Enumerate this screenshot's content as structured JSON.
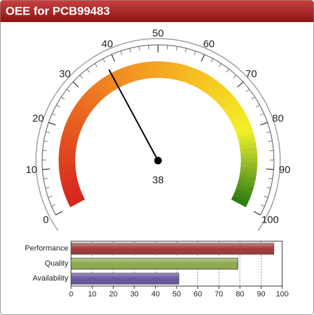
{
  "chart_data": [
    {
      "type": "gauge",
      "title": "OEE for PCB99483",
      "value": 38,
      "ylim": [
        0,
        100
      ],
      "yticks": [
        0,
        10,
        20,
        30,
        40,
        50,
        60,
        70,
        80,
        90,
        100
      ],
      "color": "#000000"
    },
    {
      "type": "bar",
      "orientation": "horizontal",
      "categories": [
        "Performance",
        "Quality",
        "Availability"
      ],
      "values": [
        96,
        79,
        51
      ],
      "colors": [
        "#a23c3c",
        "#8fa94f",
        "#6a579f"
      ],
      "xlim": [
        0,
        100
      ],
      "xticks": [
        0,
        10,
        20,
        30,
        40,
        50,
        60,
        70,
        80,
        90,
        100
      ],
      "grid": true
    }
  ]
}
